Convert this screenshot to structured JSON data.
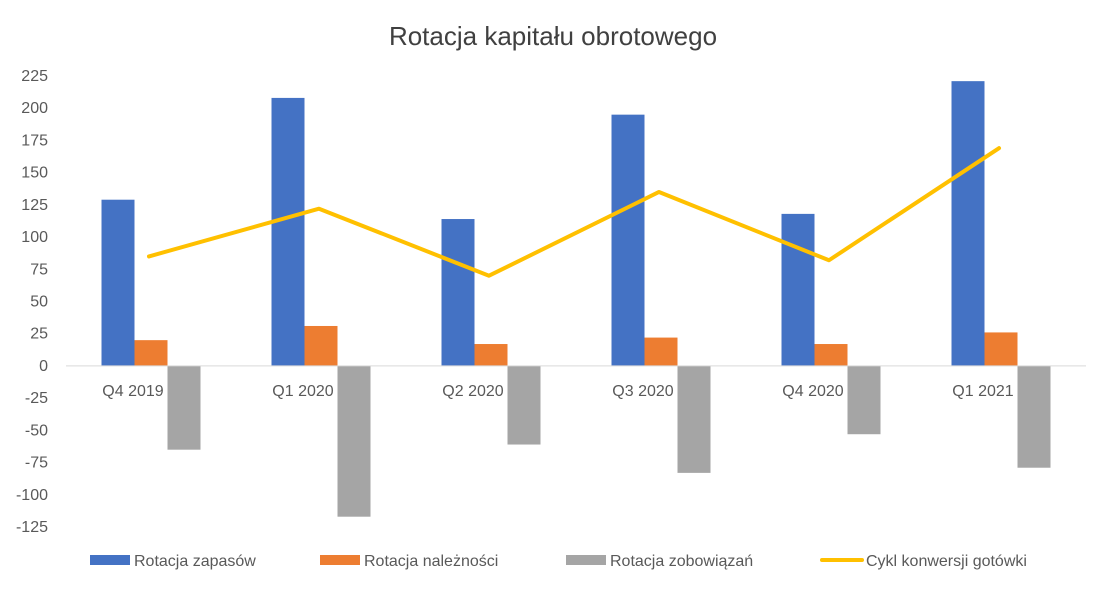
{
  "chart_data": {
    "type": "bar",
    "title": "Rotacja kapitału obrotowego",
    "categories": [
      "Q4 2019",
      "Q1 2020",
      "Q2 2020",
      "Q3 2020",
      "Q4 2020",
      "Q1 2021"
    ],
    "series": [
      {
        "name": "Rotacja zapasów",
        "type": "bar",
        "color": "#4472C4",
        "values": [
          129,
          208,
          114,
          195,
          118,
          221
        ]
      },
      {
        "name": "Rotacja należności",
        "type": "bar",
        "color": "#ED7D31",
        "values": [
          20,
          31,
          17,
          22,
          17,
          26
        ]
      },
      {
        "name": "Rotacja zobowiązań",
        "type": "bar",
        "color": "#A5A5A5",
        "values": [
          -65,
          -117,
          -61,
          -83,
          -53,
          -79
        ]
      },
      {
        "name": "Cykl konwersji gotówki",
        "type": "line",
        "color": "#FFC000",
        "values": [
          85,
          122,
          70,
          135,
          82,
          169
        ]
      }
    ],
    "y_ticks": [
      "225",
      "200",
      "175",
      "150",
      "125",
      "100",
      "75",
      "50",
      "25",
      "0",
      "-25",
      "-50",
      "-75",
      "-100",
      "-125"
    ],
    "ylim": [
      -125,
      225
    ],
    "grid": false,
    "legend_position": "bottom"
  }
}
